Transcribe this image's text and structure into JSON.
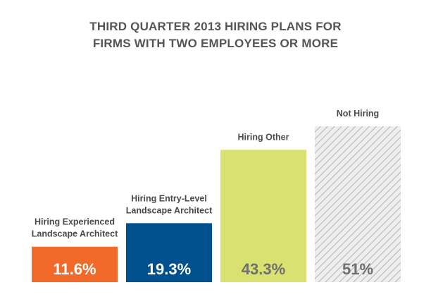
{
  "chart_data": {
    "type": "bar",
    "title": [
      "THIRD QUARTER 2013 HIRING PLANS FOR",
      "FIRMS WITH TWO EMPLOYEES OR MORE"
    ],
    "categories": [
      [
        "Hiring Experienced",
        "Landscape Architect"
      ],
      [
        "Hiring Entry-Level",
        "Landscape Architect"
      ],
      [
        "Hiring Other"
      ],
      [
        "Not Hiring"
      ]
    ],
    "values": [
      11.6,
      19.3,
      43.3,
      51
    ],
    "value_labels": [
      "11.6%",
      "19.3%",
      "43.3%",
      "51%"
    ],
    "colors": [
      "#f26a2a",
      "#00508d",
      "#d9e271",
      "hatch"
    ],
    "value_label_colors": [
      "#ffffff",
      "#ffffff",
      "#6f6f6f",
      "#6f6f6f"
    ],
    "ylim": [
      0,
      60
    ],
    "grid": false,
    "legend": "none"
  }
}
